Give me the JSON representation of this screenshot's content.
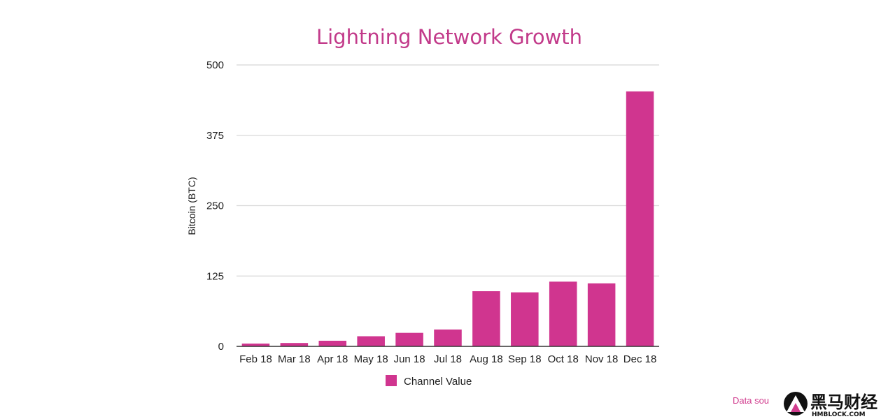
{
  "chart_data": {
    "type": "bar",
    "title": "Lightning Network Growth",
    "xlabel": "",
    "ylabel": "Bitcoin (BTC)",
    "ylim": [
      0,
      500
    ],
    "yticks": [
      0,
      125,
      250,
      375,
      500
    ],
    "categories": [
      "Feb 18",
      "Mar 18",
      "Apr 18",
      "May 18",
      "Jun 18",
      "Jul 18",
      "Aug 18",
      "Sep 18",
      "Oct 18",
      "Nov 18",
      "Dec 18"
    ],
    "series": [
      {
        "name": "Channel Value",
        "values": [
          5,
          6,
          10,
          18,
          24,
          30,
          98,
          96,
          115,
          112,
          453
        ]
      }
    ],
    "grid": true,
    "legend_position": "bottom",
    "bar_color": "#d0358f"
  },
  "footer": {
    "source_text": "Data sou",
    "watermark_title": "黑马财经",
    "watermark_sub": "HMBLOCK.COM"
  }
}
